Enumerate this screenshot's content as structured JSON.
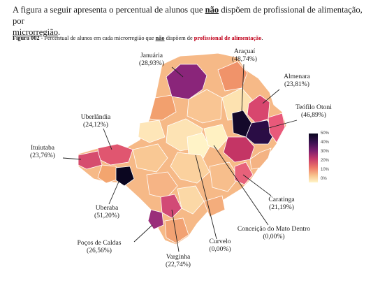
{
  "intro": {
    "part1": "A figura a seguir apresenta o percentual de alunos que ",
    "emphasis": "não",
    "part2": " dispõem de profissional de alimentação, por ",
    "part3": "microrregião",
    "part4": "."
  },
  "caption": {
    "label": "Figura 002",
    "part1": " - Percentual de alunos em cada microrregião que ",
    "emphasis": "não",
    "part2": " dispõem de ",
    "highlight": "profissional de alimentação",
    "part3": "."
  },
  "legend": {
    "ticks": [
      "50%",
      "40%",
      "30%",
      "20%",
      "10%",
      "0%"
    ]
  },
  "regions": [
    {
      "name": "Januária",
      "value": "(28,93%)"
    },
    {
      "name": "Araçuaí",
      "value": "(48,74%)"
    },
    {
      "name": "Almenara",
      "value": "(23,81%)"
    },
    {
      "name": "Teófilo Otoni",
      "value": "(46,89%)"
    },
    {
      "name": "Uberlândia",
      "value": "(24,12%)"
    },
    {
      "name": "Ituiutaba",
      "value": "(23,76%)"
    },
    {
      "name": "Uberaba",
      "value": "(51,20%)"
    },
    {
      "name": "Caratinga",
      "value": "(21,19%)"
    },
    {
      "name": "Conceição do Mato Dentro",
      "value": "(0,00%)"
    },
    {
      "name": "Curvelo",
      "value": "(0,00%)"
    },
    {
      "name": "Poços de Caldas",
      "value": "(26,56%)"
    },
    {
      "name": "Varginha",
      "value": "(22,74%)"
    }
  ],
  "colors": {
    "max": "#0a0620",
    "high": "#7c1f6e",
    "mid": "#c73a6a",
    "low": "#ef7a68",
    "lighter": "#f8c48d",
    "min": "#fff4c8"
  }
}
